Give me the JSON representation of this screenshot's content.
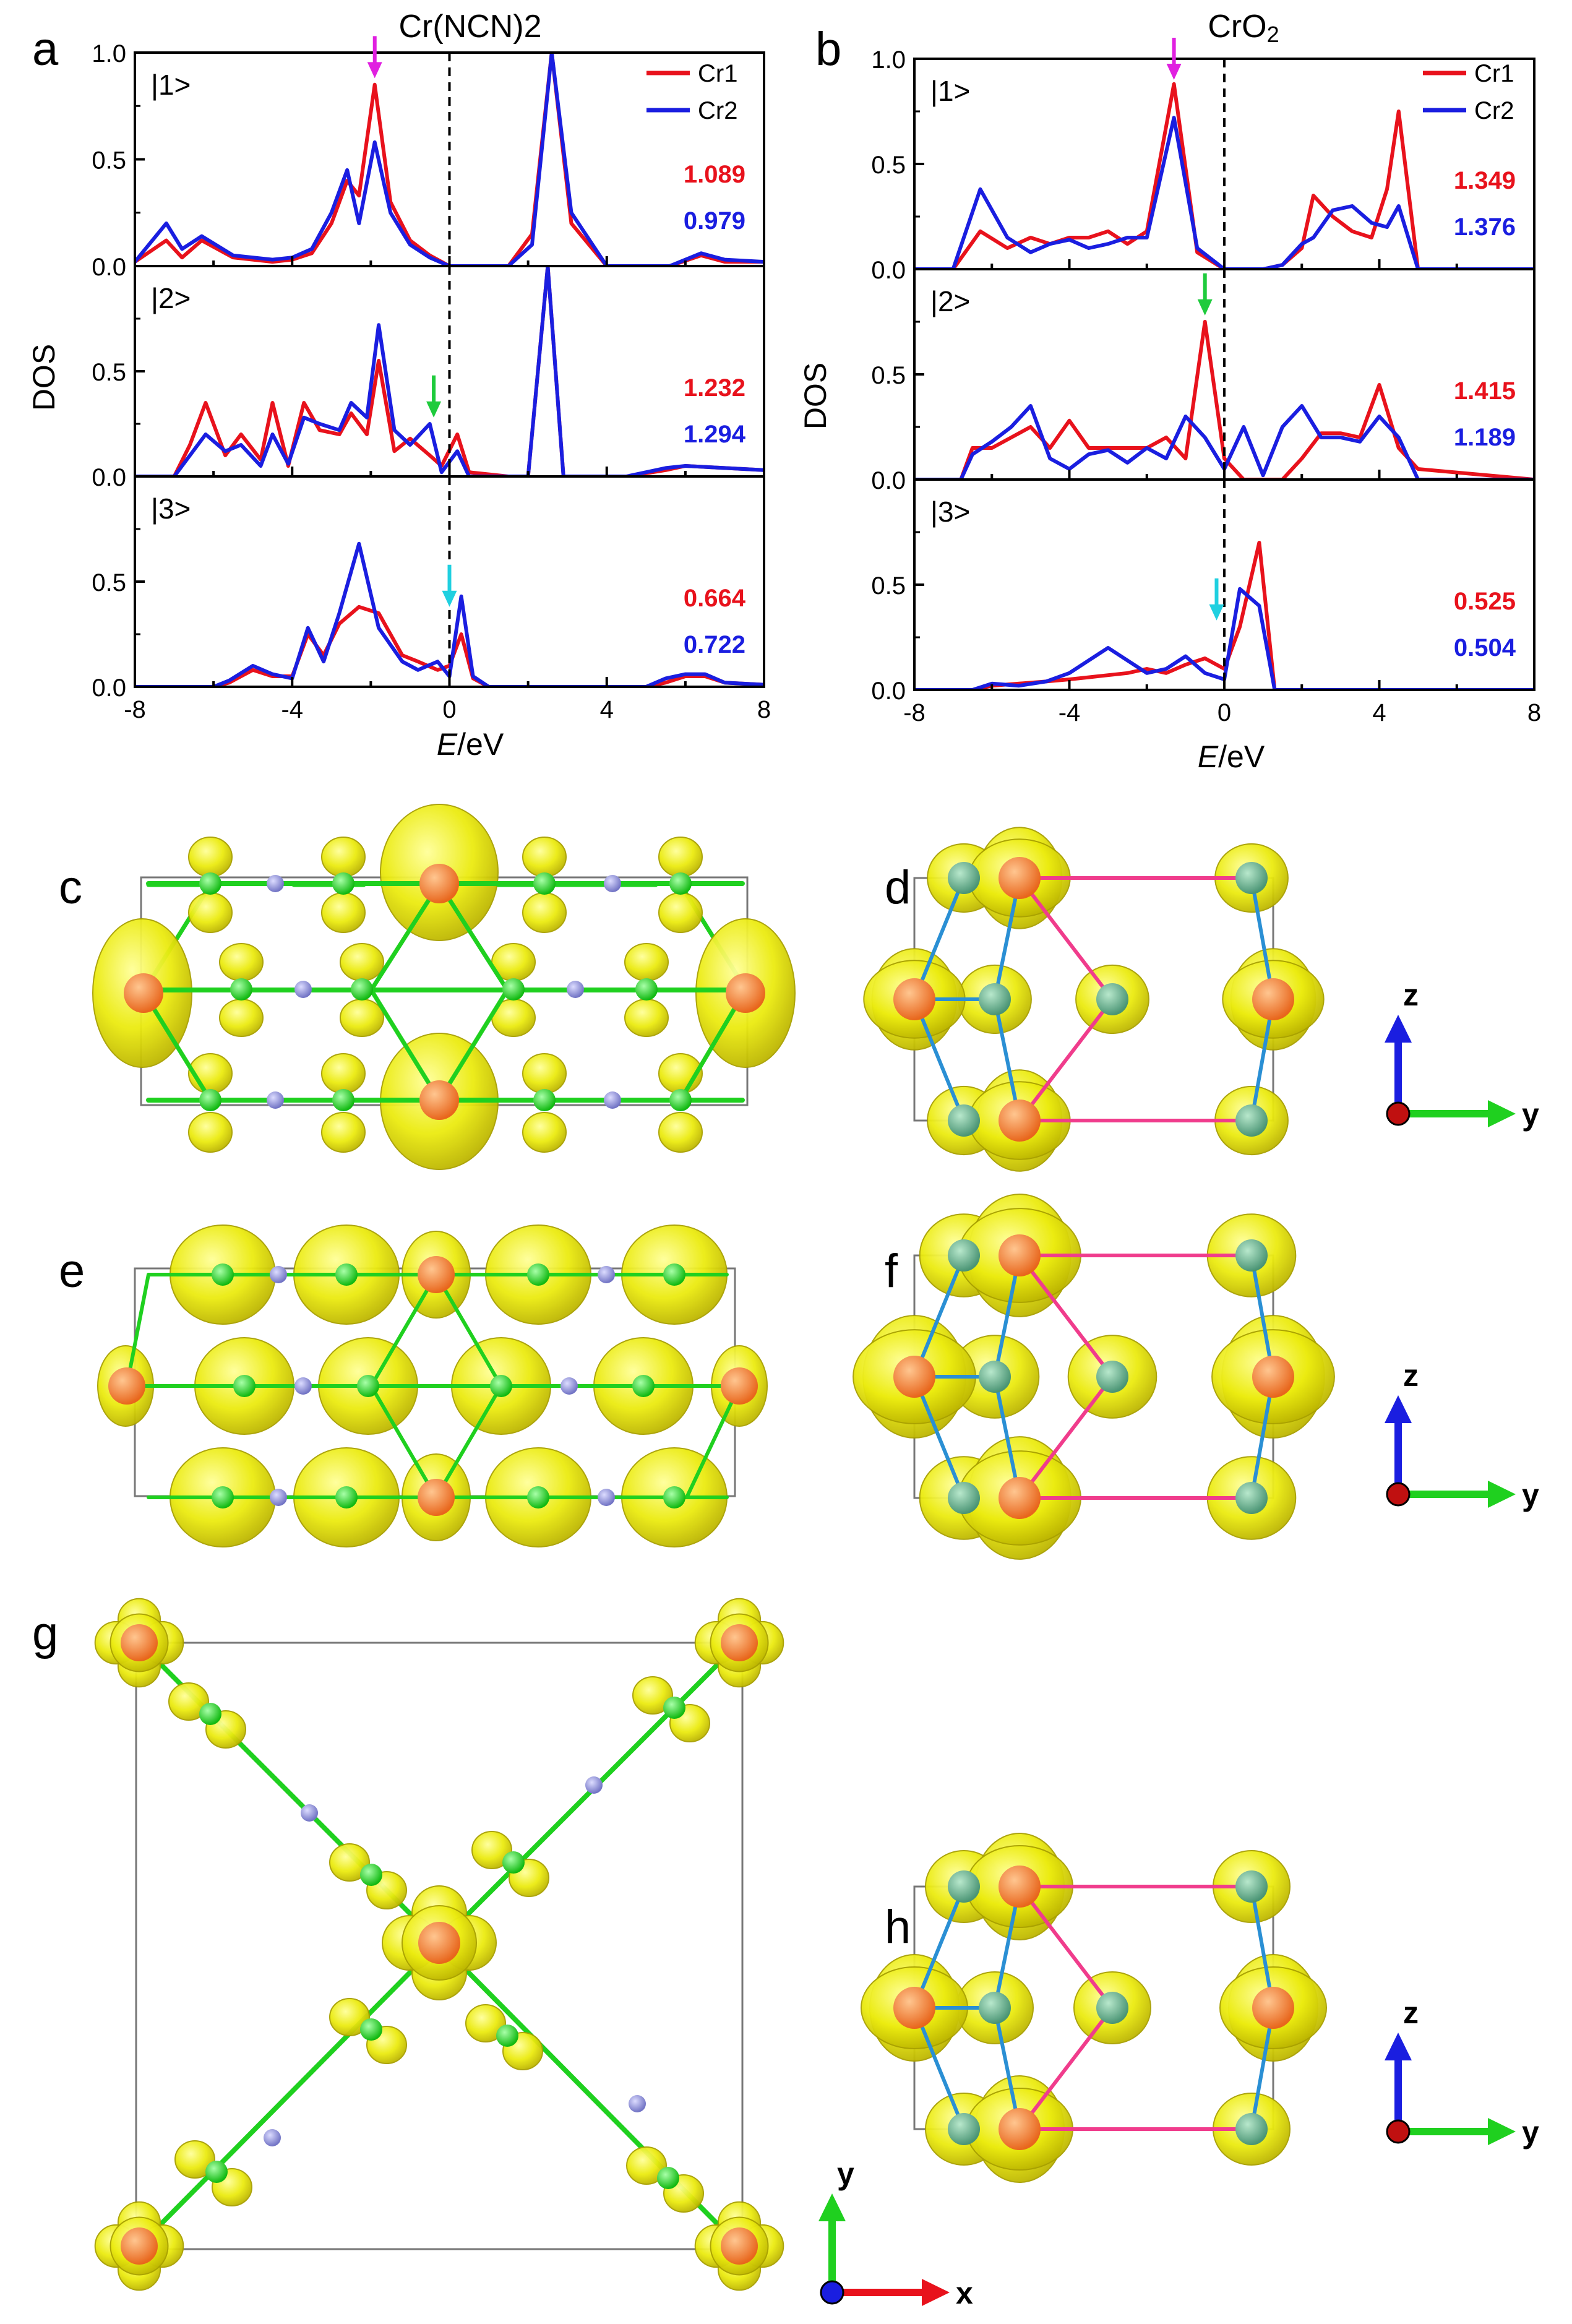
{
  "figure": {
    "panel_letters": [
      "a",
      "b",
      "c",
      "d",
      "e",
      "f",
      "g",
      "h"
    ],
    "colors": {
      "cr1": "#e8121c",
      "cr2": "#1a1ee0",
      "iso": "#ecec10",
      "cr": "#f07f3c",
      "n_green": "#1fd01f",
      "c_atom": "#8d8fd6",
      "o_atom": "#64a88e",
      "bond_pink": "#f03c8c",
      "bond_blue": "#2a8fd4"
    },
    "axes_triads": [
      {
        "panel": "d",
        "up": "z",
        "right": "y"
      },
      {
        "panel": "f",
        "up": "z",
        "right": "y"
      },
      {
        "panel": "h",
        "up": "z",
        "right": "y"
      },
      {
        "panel": "g",
        "up": "y",
        "right": "x"
      }
    ]
  },
  "chart_data": [
    {
      "type": "line",
      "panel": "a",
      "title": "Cr(NCN)2",
      "xlabel_italic": "E",
      "xlabel_unit": "/eV",
      "ylabel": "DOS",
      "xlim": [
        -8,
        8
      ],
      "xticks": [
        "-8",
        "-4",
        "0",
        "4",
        "8"
      ],
      "fermi_level": 0,
      "legend": {
        "position": "top-right",
        "entries": [
          "Cr1",
          "Cr2"
        ]
      },
      "subplots": [
        {
          "label": "|1>",
          "ylim": [
            0,
            1.0
          ],
          "yticks": [
            "0.0",
            "0.5",
            "1.0"
          ],
          "arrow": {
            "x": -1.9,
            "y": 0.88,
            "color": "#e020e0"
          },
          "annotations": [
            {
              "text": "1.089",
              "series": "Cr1"
            },
            {
              "text": "0.979",
              "series": "Cr2"
            }
          ],
          "series": [
            {
              "name": "Cr1",
              "x": [
                -8,
                -7.2,
                -6.8,
                -6.3,
                -5.5,
                -4.5,
                -4,
                -3.5,
                -3,
                -2.6,
                -2.3,
                -1.9,
                -1.5,
                -1,
                -0.5,
                0,
                1.5,
                2.1,
                2.6,
                3.1,
                4,
                5.6,
                6.4,
                7,
                8
              ],
              "y": [
                0.02,
                0.12,
                0.04,
                0.12,
                0.04,
                0.02,
                0.03,
                0.06,
                0.2,
                0.4,
                0.33,
                0.85,
                0.3,
                0.12,
                0.05,
                0,
                0,
                0.15,
                1.0,
                0.2,
                0,
                0,
                0.05,
                0.02,
                0.02
              ]
            },
            {
              "name": "Cr2",
              "x": [
                -8,
                -7.2,
                -6.8,
                -6.3,
                -5.5,
                -4.5,
                -4,
                -3.5,
                -3,
                -2.6,
                -2.3,
                -1.9,
                -1.5,
                -1,
                -0.5,
                0,
                1.5,
                2.1,
                2.6,
                3.1,
                4,
                5.6,
                6.4,
                7,
                8
              ],
              "y": [
                0.02,
                0.2,
                0.08,
                0.14,
                0.05,
                0.03,
                0.04,
                0.08,
                0.25,
                0.45,
                0.2,
                0.58,
                0.25,
                0.1,
                0.04,
                0,
                0,
                0.1,
                1.0,
                0.25,
                0,
                0,
                0.06,
                0.03,
                0.02
              ]
            }
          ]
        },
        {
          "label": "|2>",
          "ylim": [
            0,
            1.0
          ],
          "yticks": [
            "0.0",
            "0.5"
          ],
          "arrow": {
            "x": -0.4,
            "y": 0.28,
            "color": "#1ecb3c"
          },
          "annotations": [
            {
              "text": "1.232",
              "series": "Cr1"
            },
            {
              "text": "1.294",
              "series": "Cr2"
            }
          ],
          "series": [
            {
              "name": "Cr1",
              "x": [
                -8,
                -7,
                -6.6,
                -6.2,
                -5.7,
                -5.3,
                -4.8,
                -4.5,
                -4.1,
                -3.7,
                -3.3,
                -2.8,
                -2.5,
                -2.1,
                -1.8,
                -1.4,
                -1,
                -0.5,
                -0.2,
                0.2,
                0.5,
                1.5,
                2,
                2.5,
                2.9,
                3.5,
                4.5,
                5.5,
                6,
                7,
                8
              ],
              "y": [
                0,
                0,
                0.15,
                0.35,
                0.1,
                0.2,
                0.08,
                0.35,
                0.05,
                0.35,
                0.22,
                0.2,
                0.3,
                0.2,
                0.55,
                0.12,
                0.18,
                0.1,
                0.05,
                0.2,
                0.02,
                0,
                0,
                1.0,
                0,
                0,
                0,
                0.03,
                0.05,
                0.04,
                0.03
              ]
            },
            {
              "name": "Cr2",
              "x": [
                -8,
                -7,
                -6.6,
                -6.2,
                -5.7,
                -5.3,
                -4.8,
                -4.5,
                -4.1,
                -3.7,
                -3.3,
                -2.8,
                -2.5,
                -2.1,
                -1.8,
                -1.4,
                -1,
                -0.5,
                -0.2,
                0.2,
                0.5,
                1.5,
                2,
                2.5,
                2.9,
                3.5,
                4.5,
                5.5,
                6,
                7,
                8
              ],
              "y": [
                0,
                0,
                0.1,
                0.2,
                0.12,
                0.15,
                0.05,
                0.2,
                0.06,
                0.28,
                0.25,
                0.22,
                0.35,
                0.28,
                0.72,
                0.22,
                0.15,
                0.25,
                0.02,
                0.12,
                0,
                0,
                0,
                1.0,
                0,
                0,
                0,
                0.04,
                0.05,
                0.04,
                0.03
              ]
            }
          ]
        },
        {
          "label": "|3>",
          "ylim": [
            0,
            1.0
          ],
          "yticks": [
            "0.0",
            "0.5"
          ],
          "arrow": {
            "x": 0,
            "y": 0.38,
            "color": "#20d0e0"
          },
          "annotations": [
            {
              "text": "0.664",
              "series": "Cr1"
            },
            {
              "text": "0.722",
              "series": "Cr2"
            }
          ],
          "series": [
            {
              "name": "Cr1",
              "x": [
                -8,
                -6,
                -5.6,
                -5,
                -4.5,
                -4,
                -3.6,
                -3.2,
                -2.8,
                -2.3,
                -1.8,
                -1.2,
                -0.8,
                -0.3,
                0,
                0.3,
                0.6,
                1,
                5,
                5.5,
                6,
                6.5,
                7,
                8
              ],
              "y": [
                0,
                0,
                0.02,
                0.08,
                0.05,
                0.05,
                0.25,
                0.15,
                0.3,
                0.38,
                0.35,
                0.15,
                0.12,
                0.08,
                0.1,
                0.25,
                0.04,
                0,
                0,
                0.02,
                0.05,
                0.05,
                0.02,
                0.01
              ]
            },
            {
              "name": "Cr2",
              "x": [
                -8,
                -6,
                -5.6,
                -5,
                -4.5,
                -4,
                -3.6,
                -3.2,
                -2.8,
                -2.3,
                -1.8,
                -1.2,
                -0.8,
                -0.3,
                0,
                0.3,
                0.6,
                1,
                5,
                5.5,
                6,
                6.5,
                7,
                8
              ],
              "y": [
                0,
                0,
                0.03,
                0.1,
                0.06,
                0.04,
                0.28,
                0.12,
                0.35,
                0.68,
                0.28,
                0.12,
                0.08,
                0.12,
                0.05,
                0.43,
                0.05,
                0,
                0,
                0.04,
                0.06,
                0.06,
                0.02,
                0.01
              ]
            }
          ]
        }
      ]
    },
    {
      "type": "line",
      "panel": "b",
      "title_main": "CrO",
      "title_sub": "2",
      "xlabel_italic": "E",
      "xlabel_unit": "/eV",
      "ylabel": "DOS",
      "xlim": [
        -8,
        8
      ],
      "xticks": [
        "-8",
        "-4",
        "0",
        "4",
        "8"
      ],
      "fermi_level": 0,
      "legend": {
        "position": "top-right",
        "entries": [
          "Cr1",
          "Cr2"
        ]
      },
      "subplots": [
        {
          "label": "|1>",
          "ylim": [
            0,
            1.0
          ],
          "yticks": [
            "0.0",
            "0.5",
            "1.0"
          ],
          "arrow": {
            "x": -1.3,
            "y": 0.9,
            "color": "#e020e0"
          },
          "annotations": [
            {
              "text": "1.349",
              "series": "Cr1"
            },
            {
              "text": "1.376",
              "series": "Cr2"
            }
          ],
          "series": [
            {
              "name": "Cr1",
              "x": [
                -8,
                -7,
                -6.3,
                -5.6,
                -5,
                -4.5,
                -4,
                -3.5,
                -3,
                -2.5,
                -2,
                -1.3,
                -0.7,
                0,
                1,
                1.5,
                2,
                2.3,
                2.8,
                3.3,
                3.8,
                4.2,
                4.5,
                5,
                8
              ],
              "y": [
                0,
                0,
                0.18,
                0.1,
                0.15,
                0.12,
                0.15,
                0.15,
                0.18,
                0.12,
                0.18,
                0.88,
                0.08,
                0,
                0,
                0.02,
                0.1,
                0.35,
                0.25,
                0.18,
                0.15,
                0.38,
                0.75,
                0,
                0
              ]
            },
            {
              "name": "Cr2",
              "x": [
                -8,
                -7,
                -6.3,
                -5.6,
                -5,
                -4.5,
                -4,
                -3.5,
                -3,
                -2.5,
                -2,
                -1.3,
                -0.7,
                0,
                1,
                1.5,
                2,
                2.3,
                2.8,
                3.3,
                3.8,
                4.2,
                4.5,
                5,
                8
              ],
              "y": [
                0,
                0,
                0.38,
                0.15,
                0.08,
                0.12,
                0.14,
                0.1,
                0.12,
                0.15,
                0.15,
                0.72,
                0.1,
                0,
                0,
                0.02,
                0.12,
                0.15,
                0.28,
                0.3,
                0.22,
                0.2,
                0.3,
                0,
                0
              ]
            }
          ]
        },
        {
          "label": "|2>",
          "ylim": [
            0,
            1.0
          ],
          "yticks": [
            "0.0",
            "0.5"
          ],
          "arrow": {
            "x": -0.5,
            "y": 0.78,
            "color": "#1ecb3c"
          },
          "annotations": [
            {
              "text": "1.415",
              "series": "Cr1"
            },
            {
              "text": "1.189",
              "series": "Cr2"
            }
          ],
          "series": [
            {
              "name": "Cr1",
              "x": [
                -8,
                -6.8,
                -6.5,
                -6,
                -5.5,
                -5,
                -4.5,
                -4,
                -3.5,
                -3,
                -2.5,
                -2,
                -1.5,
                -1,
                -0.5,
                0,
                0.5,
                1,
                1.5,
                2,
                2.5,
                3,
                3.5,
                4,
                4.5,
                5,
                8
              ],
              "y": [
                0,
                0,
                0.15,
                0.15,
                0.2,
                0.25,
                0.15,
                0.28,
                0.15,
                0.15,
                0.15,
                0.15,
                0.2,
                0.1,
                0.75,
                0.1,
                0,
                0,
                0,
                0.1,
                0.22,
                0.22,
                0.2,
                0.45,
                0.15,
                0.05,
                0
              ]
            },
            {
              "name": "Cr2",
              "x": [
                -8,
                -6.8,
                -6.5,
                -6,
                -5.5,
                -5,
                -4.5,
                -4,
                -3.5,
                -3,
                -2.5,
                -2,
                -1.5,
                -1,
                -0.5,
                0,
                0.5,
                1,
                1.5,
                2,
                2.5,
                3,
                3.5,
                4,
                4.5,
                5,
                8
              ],
              "y": [
                0,
                0,
                0.12,
                0.18,
                0.25,
                0.35,
                0.1,
                0.05,
                0.12,
                0.14,
                0.08,
                0.15,
                0.1,
                0.3,
                0.2,
                0.05,
                0.25,
                0.02,
                0.25,
                0.35,
                0.2,
                0.2,
                0.18,
                0.3,
                0.2,
                0,
                0
              ]
            }
          ]
        },
        {
          "label": "|3>",
          "ylim": [
            0,
            1.0
          ],
          "yticks": [
            "0.0",
            "0.5"
          ],
          "arrow": {
            "x": -0.2,
            "y": 0.33,
            "color": "#20d0e0"
          },
          "annotations": [
            {
              "text": "0.525",
              "series": "Cr1"
            },
            {
              "text": "0.504",
              "series": "Cr2"
            }
          ],
          "series": [
            {
              "name": "Cr1",
              "x": [
                -8,
                -6.5,
                -6,
                -5.3,
                -4.6,
                -4,
                -3.5,
                -3,
                -2.5,
                -2,
                -1.5,
                -1,
                -0.5,
                0,
                0.4,
                0.9,
                1.3,
                8
              ],
              "y": [
                0,
                0,
                0.02,
                0.03,
                0.04,
                0.05,
                0.06,
                0.07,
                0.08,
                0.1,
                0.08,
                0.12,
                0.15,
                0.1,
                0.3,
                0.7,
                0,
                0
              ]
            },
            {
              "name": "Cr2",
              "x": [
                -8,
                -6.5,
                -6,
                -5.3,
                -4.6,
                -4,
                -3.5,
                -3,
                -2.5,
                -2,
                -1.5,
                -1,
                -0.5,
                0,
                0.4,
                0.9,
                1.3,
                8
              ],
              "y": [
                0,
                0,
                0.03,
                0.02,
                0.04,
                0.08,
                0.14,
                0.2,
                0.14,
                0.08,
                0.1,
                0.16,
                0.08,
                0.05,
                0.48,
                0.4,
                0,
                0
              ]
            }
          ]
        }
      ]
    }
  ]
}
